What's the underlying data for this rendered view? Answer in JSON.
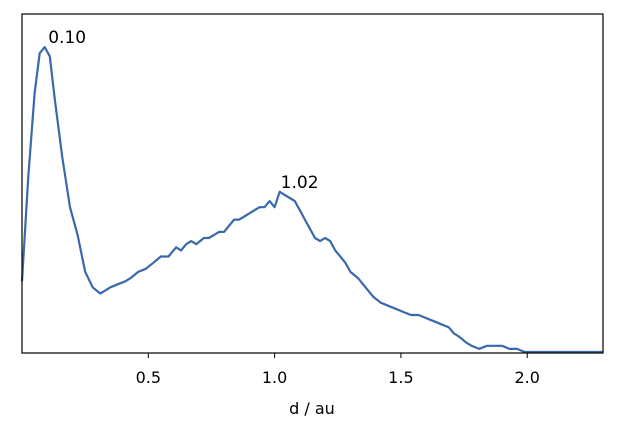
{
  "chart_data": {
    "type": "line",
    "title": "",
    "xlabel": "d / au",
    "ylabel": "",
    "xlim": [
      0.0,
      2.3
    ],
    "ylim": [
      0.0,
      1.0
    ],
    "x_ticks": [
      0.5,
      1.0,
      1.5,
      2.0
    ],
    "x_tick_labels": [
      "0.5",
      "1.0",
      "1.5",
      "2.0"
    ],
    "y_ticks_visible": false,
    "grid": false,
    "line_color": "#3a68ad",
    "series": [
      {
        "x": [
          0.0,
          0.025,
          0.05,
          0.07,
          0.09,
          0.11,
          0.13,
          0.16,
          0.19,
          0.22,
          0.25,
          0.28,
          0.31,
          0.33,
          0.35,
          0.38,
          0.41,
          0.43,
          0.46,
          0.49,
          0.52,
          0.55,
          0.58,
          0.61,
          0.63,
          0.65,
          0.67,
          0.69,
          0.72,
          0.74,
          0.76,
          0.78,
          0.8,
          0.82,
          0.84,
          0.86,
          0.88,
          0.9,
          0.92,
          0.94,
          0.96,
          0.98,
          1.0,
          1.02,
          1.04,
          1.06,
          1.08,
          1.1,
          1.12,
          1.14,
          1.16,
          1.18,
          1.2,
          1.22,
          1.24,
          1.26,
          1.28,
          1.3,
          1.33,
          1.36,
          1.39,
          1.42,
          1.45,
          1.48,
          1.51,
          1.54,
          1.57,
          1.6,
          1.63,
          1.66,
          1.69,
          1.71,
          1.73,
          1.76,
          1.78,
          1.81,
          1.84,
          1.87,
          1.9,
          1.93,
          1.96,
          1.99,
          2.02,
          2.06,
          2.1,
          2.15,
          2.2,
          2.25,
          2.3
        ],
        "y": [
          0.23,
          0.57,
          0.84,
          0.97,
          0.99,
          0.96,
          0.82,
          0.63,
          0.47,
          0.38,
          0.26,
          0.21,
          0.19,
          0.2,
          0.21,
          0.22,
          0.23,
          0.24,
          0.26,
          0.27,
          0.29,
          0.31,
          0.31,
          0.34,
          0.33,
          0.35,
          0.36,
          0.35,
          0.37,
          0.37,
          0.38,
          0.39,
          0.39,
          0.41,
          0.43,
          0.43,
          0.44,
          0.45,
          0.46,
          0.47,
          0.47,
          0.49,
          0.47,
          0.52,
          0.51,
          0.5,
          0.49,
          0.46,
          0.43,
          0.4,
          0.37,
          0.36,
          0.37,
          0.36,
          0.33,
          0.31,
          0.29,
          0.26,
          0.24,
          0.21,
          0.18,
          0.16,
          0.15,
          0.14,
          0.13,
          0.12,
          0.12,
          0.11,
          0.1,
          0.09,
          0.08,
          0.06,
          0.05,
          0.03,
          0.02,
          0.01,
          0.02,
          0.02,
          0.02,
          0.01,
          0.01,
          0.0,
          0.0,
          0.0,
          0.0,
          0.0,
          0.0,
          0.0,
          0.0
        ]
      }
    ],
    "annotations": [
      {
        "text": "0.10",
        "x": 0.1,
        "y": 0.99
      },
      {
        "text": "1.02",
        "x": 1.02,
        "y": 0.52
      }
    ]
  }
}
